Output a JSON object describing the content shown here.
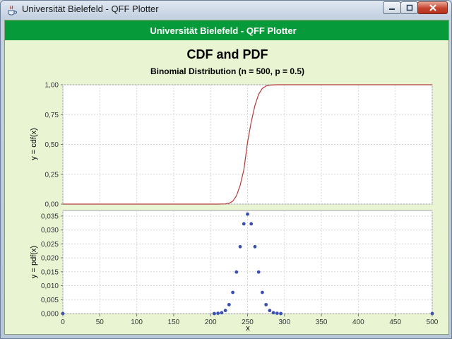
{
  "window": {
    "title": "Universität Bielefeld - QFF Plotter",
    "icon": "java-coffee-icon",
    "controls": [
      "minimize-icon",
      "maximize-icon",
      "close-icon"
    ]
  },
  "banner": {
    "text": "Universität Bielefeld - QFF Plotter"
  },
  "colors": {
    "banner": "#079a3a",
    "panel_bg": "#e9f5d2",
    "cdf_line": "#b23a3a",
    "pdf_points": "#3a4fb0"
  },
  "chart_data": {
    "type": "line",
    "title": "CDF and PDF",
    "subtitle": "Binomial Distribution (n = 500, p = 0.5)",
    "xlabel": "x",
    "xlim": [
      0,
      500
    ],
    "x_ticks": [
      "0",
      "50",
      "100",
      "150",
      "200",
      "250",
      "300",
      "350",
      "400",
      "450",
      "500"
    ],
    "grid": true,
    "distribution": {
      "n": 500,
      "p": 0.5
    },
    "panels": [
      {
        "name": "cdf",
        "type": "line",
        "ylabel": "y = cdf(x)",
        "ylim": [
          0,
          1
        ],
        "y_ticks": [
          "0,00",
          "0,25",
          "0,50",
          "0,75",
          "1,00"
        ],
        "x": [
          0,
          210,
          220,
          225,
          230,
          235,
          240,
          245,
          250,
          255,
          260,
          265,
          270,
          275,
          280,
          290,
          500
        ],
        "y": [
          0,
          0,
          0.002,
          0.007,
          0.025,
          0.07,
          0.156,
          0.288,
          0.518,
          0.688,
          0.827,
          0.92,
          0.969,
          0.99,
          0.997,
          1.0,
          1.0
        ]
      },
      {
        "name": "pdf",
        "type": "scatter",
        "ylabel": "y = pdf(x)",
        "ylim": [
          0,
          0.037
        ],
        "y_ticks": [
          "0,000",
          "0,005",
          "0,010",
          "0,015",
          "0,020",
          "0,025",
          "0,030",
          "0,035"
        ],
        "x": [
          0,
          205,
          210,
          215,
          220,
          225,
          230,
          235,
          240,
          245,
          250,
          255,
          260,
          265,
          270,
          275,
          280,
          285,
          290,
          295,
          500
        ],
        "y": [
          0,
          0,
          0.0001,
          0.0003,
          0.0011,
          0.0032,
          0.0076,
          0.0149,
          0.024,
          0.0322,
          0.0357,
          0.0322,
          0.024,
          0.0149,
          0.0076,
          0.0032,
          0.0011,
          0.0003,
          0.0001,
          0,
          0
        ]
      }
    ]
  }
}
